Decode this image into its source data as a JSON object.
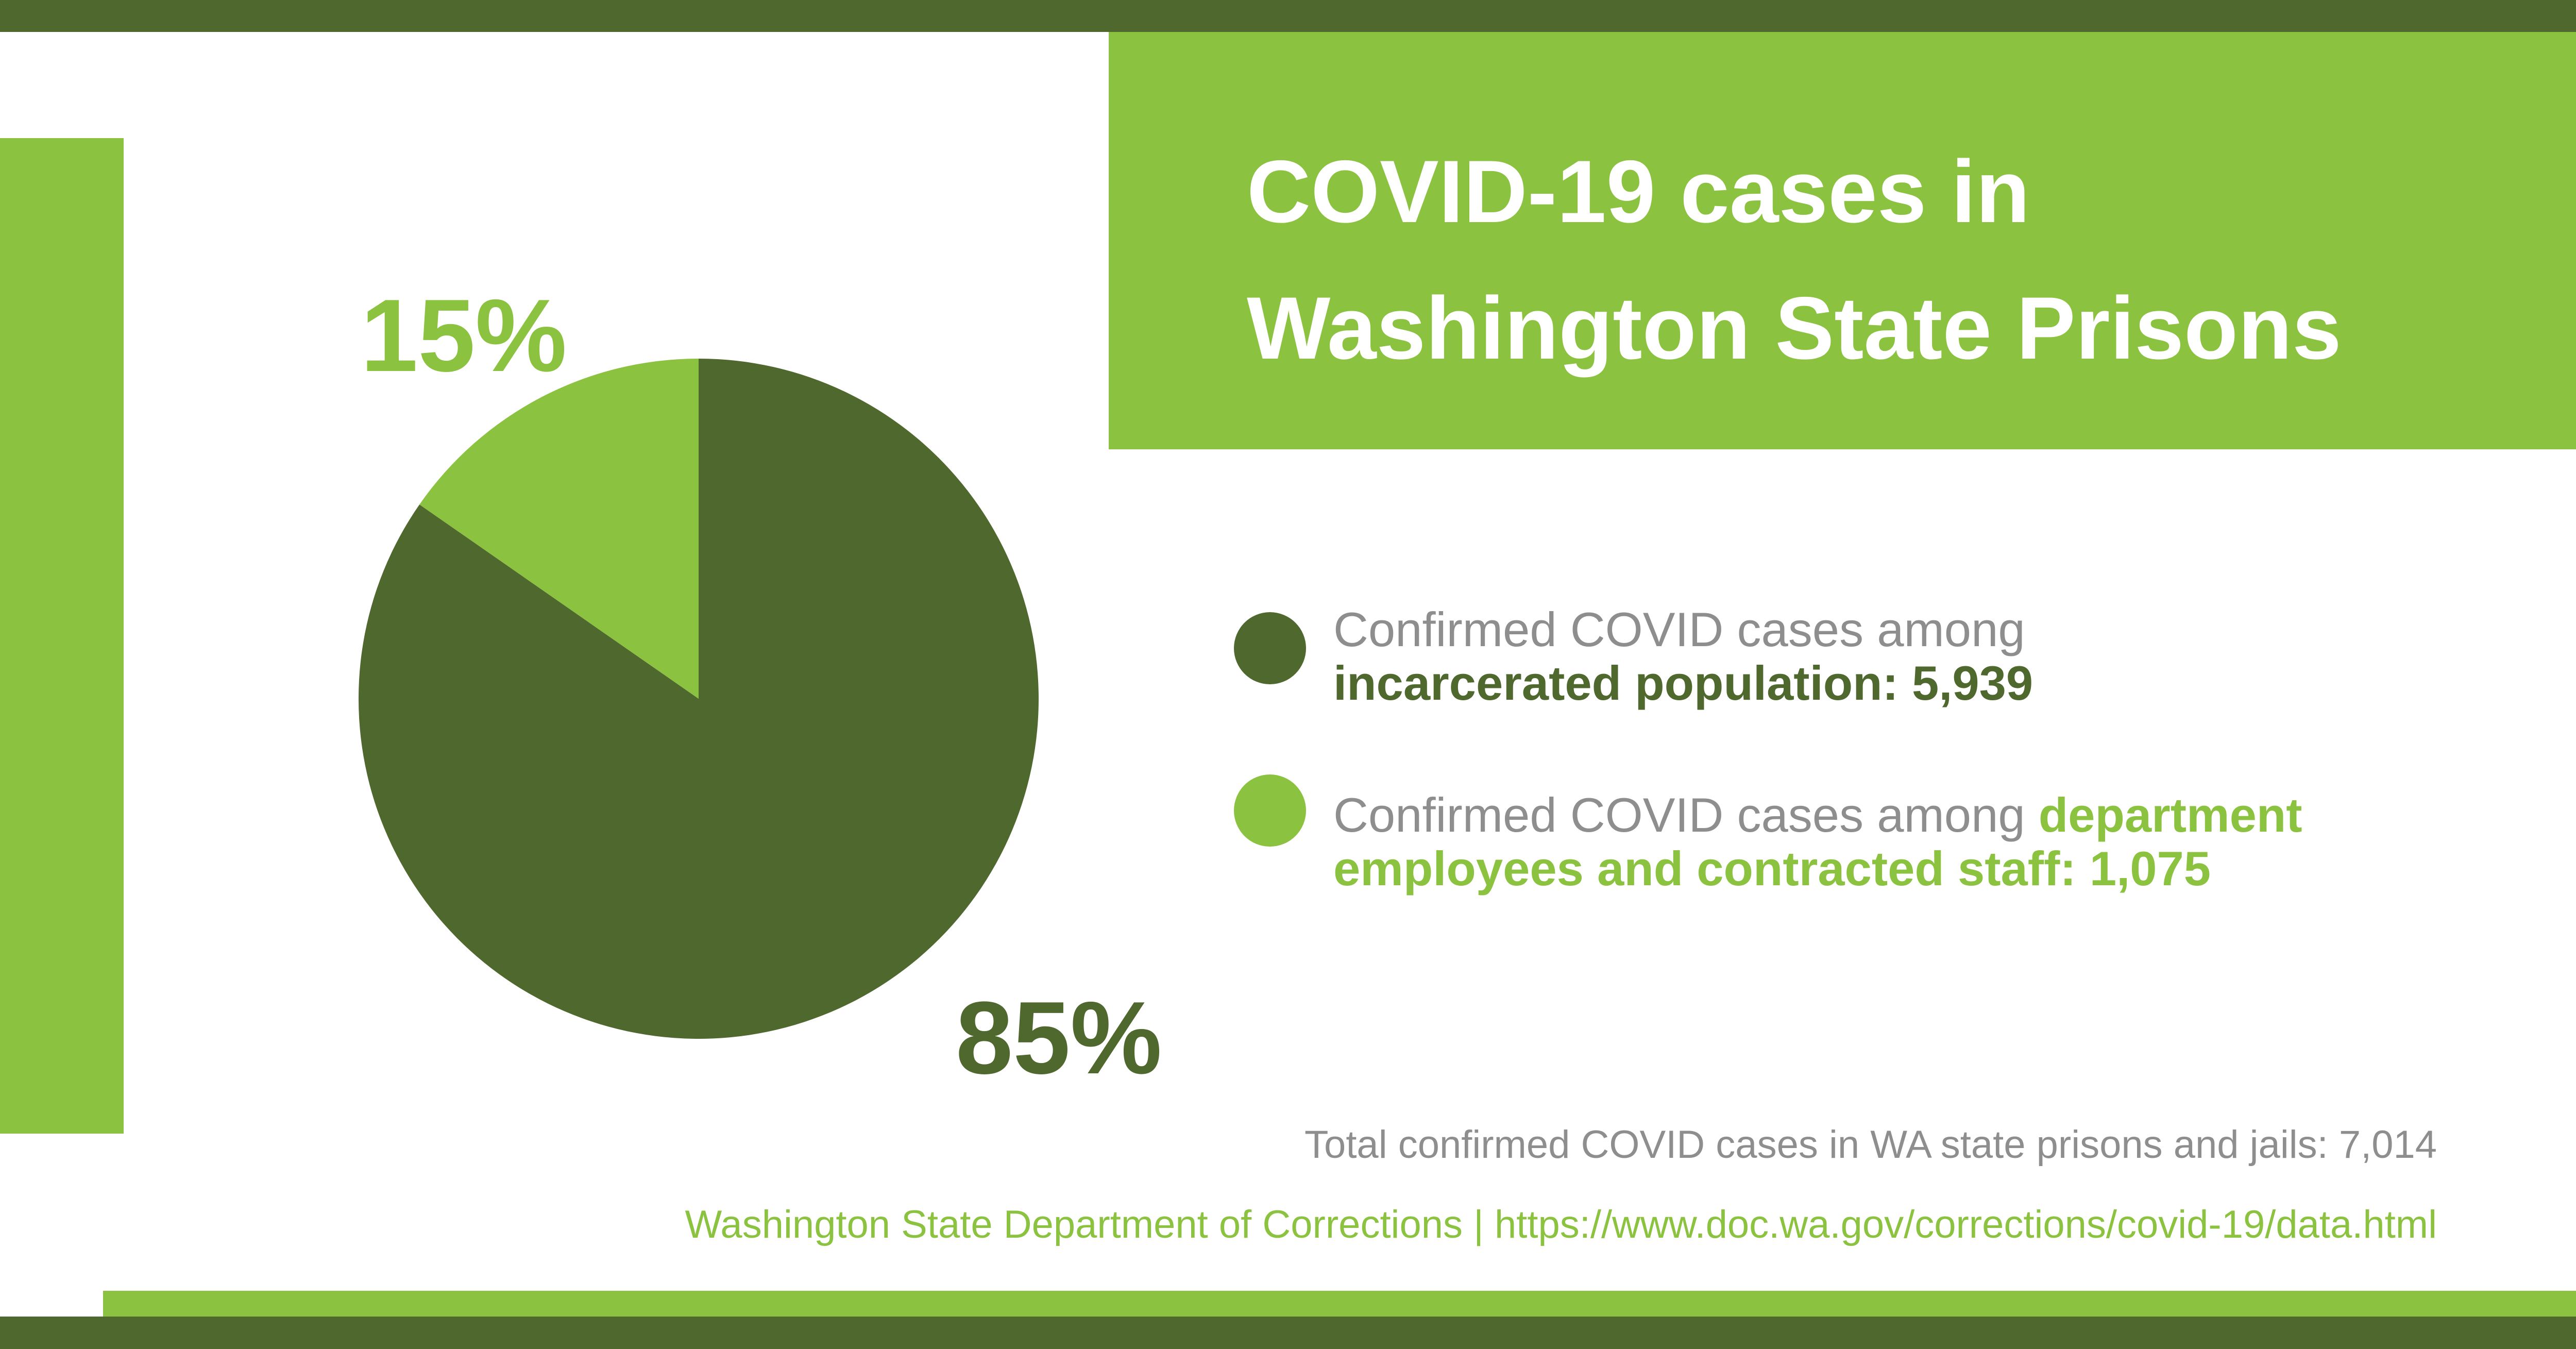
{
  "title": {
    "line1": "COVID-19 cases in",
    "line2": "Washington State Prisons"
  },
  "colors": {
    "dark_green": "#4f682e",
    "light_green": "#8bc23f",
    "gray_text": "#8e8e8e"
  },
  "chart_data": {
    "type": "pie",
    "title": "COVID-19 cases in Washington State Prisons",
    "slices": [
      {
        "label": "Confirmed COVID cases among incarcerated population",
        "value": 5939,
        "percent_label": "85%",
        "color": "#4f682e"
      },
      {
        "label": "Confirmed COVID cases among department employees and contracted staff",
        "value": 1075,
        "percent_label": "15%",
        "color": "#8bc23f"
      }
    ],
    "total": 7014
  },
  "legend": {
    "incarcerated": {
      "prefix": "Confirmed COVID cases among",
      "bold": "incarcerated population: 5,939"
    },
    "staff": {
      "prefix": "Confirmed COVID cases among",
      "bold_line1": "department",
      "bold_line2": "employees and contracted staff: 1,075"
    }
  },
  "footer": {
    "total": "Total confirmed COVID cases in WA state prisons and jails: 7,014",
    "source": "Washington State Department of Corrections | https://www.doc.wa.gov/corrections/covid-19/data.html"
  }
}
